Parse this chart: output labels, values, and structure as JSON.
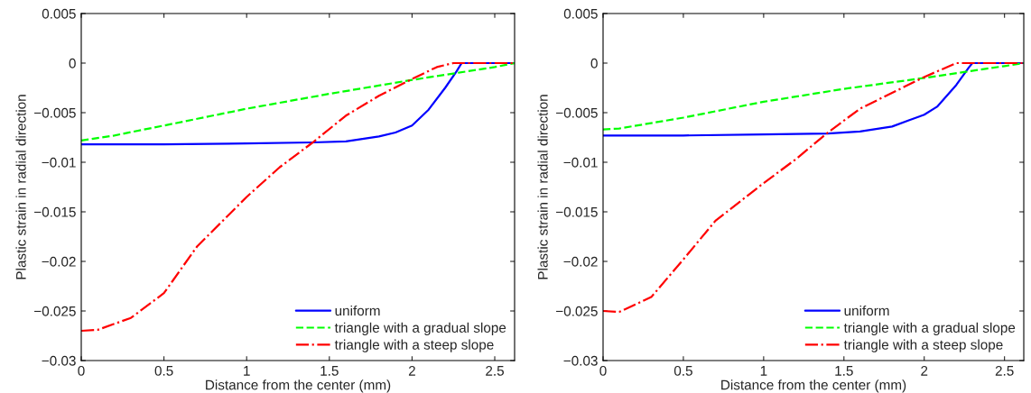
{
  "chart_data": [
    {
      "type": "line",
      "xlabel": "Distance from the center (mm)",
      "ylabel": "Plastic strain in radial direction",
      "xlim": [
        0,
        2.62
      ],
      "ylim": [
        -0.03,
        0.005
      ],
      "xticks": [
        0,
        0.5,
        1,
        1.5,
        2,
        2.5
      ],
      "yticks": [
        {
          "value": -0.03,
          "label": "−0.03"
        },
        {
          "value": -0.025,
          "label": "−0.025"
        },
        {
          "value": -0.02,
          "label": "−0.02"
        },
        {
          "value": -0.015,
          "label": "−0.015"
        },
        {
          "value": -0.01,
          "label": "−0.01"
        },
        {
          "value": -0.005,
          "label": "−0.005"
        },
        0,
        0.005
      ],
      "grid": false,
      "legend": "bottom right",
      "series": [
        {
          "name": "uniform",
          "color": "#0000ff",
          "line_style": "solid",
          "x": [
            0,
            0.1,
            0.5,
            1,
            1.4,
            1.6,
            1.8,
            1.9,
            2,
            2.1,
            2.2,
            2.27,
            2.3,
            2.62
          ],
          "values": [
            -0.0082,
            -0.0082,
            -0.0082,
            -0.0081,
            -0.008,
            -0.0079,
            -0.0074,
            -0.007,
            -0.0063,
            -0.0047,
            -0.0025,
            -0.0008,
            0,
            0
          ]
        },
        {
          "name": "triangle with a gradual slope",
          "color": "#00ff00",
          "line_style": "dashed",
          "x": [
            0,
            0.2,
            0.5,
            1,
            1.5,
            2,
            2.5,
            2.62
          ],
          "values": [
            -0.0078,
            -0.0073,
            -0.0063,
            -0.0046,
            -0.0031,
            -0.0017,
            -0.0004,
            0
          ]
        },
        {
          "name": "triangle with a steep slope",
          "color": "#ff0000",
          "line_style": "dashdot",
          "x": [
            0,
            0.1,
            0.3,
            0.5,
            0.7,
            1,
            1.2,
            1.4,
            1.6,
            1.8,
            2,
            2.15,
            2.25,
            2.62
          ],
          "values": [
            -0.027,
            -0.0269,
            -0.0257,
            -0.0232,
            -0.0185,
            -0.0135,
            -0.0105,
            -0.008,
            -0.0053,
            -0.0033,
            -0.0016,
            -0.0004,
            0,
            0
          ]
        }
      ]
    },
    {
      "type": "line",
      "xlabel": "Distance from the center (mm)",
      "ylabel": "Plastic strain in radial direction",
      "xlim": [
        0,
        2.62
      ],
      "ylim": [
        -0.03,
        0.005
      ],
      "xticks": [
        0,
        0.5,
        1,
        1.5,
        2,
        2.5
      ],
      "yticks": [
        {
          "value": -0.03,
          "label": "−0.03"
        },
        {
          "value": -0.025,
          "label": "−0.025"
        },
        {
          "value": -0.02,
          "label": "−0.02"
        },
        {
          "value": -0.015,
          "label": "−0.015"
        },
        {
          "value": -0.01,
          "label": "−0.01"
        },
        {
          "value": -0.005,
          "label": "−0.005"
        },
        0,
        0.005
      ],
      "grid": false,
      "legend": "bottom right",
      "series": [
        {
          "name": "uniform",
          "color": "#0000ff",
          "line_style": "solid",
          "x": [
            0,
            0.5,
            1,
            1.4,
            1.6,
            1.8,
            1.9,
            2,
            2.08,
            2.2,
            2.28,
            2.3,
            2.62
          ],
          "values": [
            -0.0073,
            -0.0073,
            -0.0072,
            -0.0071,
            -0.0069,
            -0.0064,
            -0.0058,
            -0.0052,
            -0.0044,
            -0.0022,
            -0.0004,
            0,
            0
          ]
        },
        {
          "name": "triangle with a gradual slope",
          "color": "#00ff00",
          "line_style": "dashed",
          "x": [
            0,
            0.1,
            0.5,
            1,
            1.5,
            2,
            2.5,
            2.62
          ],
          "values": [
            -0.0067,
            -0.0066,
            -0.0055,
            -0.0039,
            -0.0026,
            -0.0015,
            -0.0003,
            0
          ]
        },
        {
          "name": "triangle with a steep slope",
          "color": "#ff0000",
          "line_style": "dashdot",
          "x": [
            0,
            0.1,
            0.3,
            0.5,
            0.7,
            1,
            1.2,
            1.4,
            1.6,
            1.8,
            2,
            2.2,
            2.62
          ],
          "values": [
            -0.025,
            -0.0251,
            -0.0236,
            -0.0198,
            -0.0159,
            -0.0121,
            -0.0097,
            -0.007,
            -0.0046,
            -0.003,
            -0.0014,
            0,
            0
          ]
        }
      ]
    }
  ]
}
